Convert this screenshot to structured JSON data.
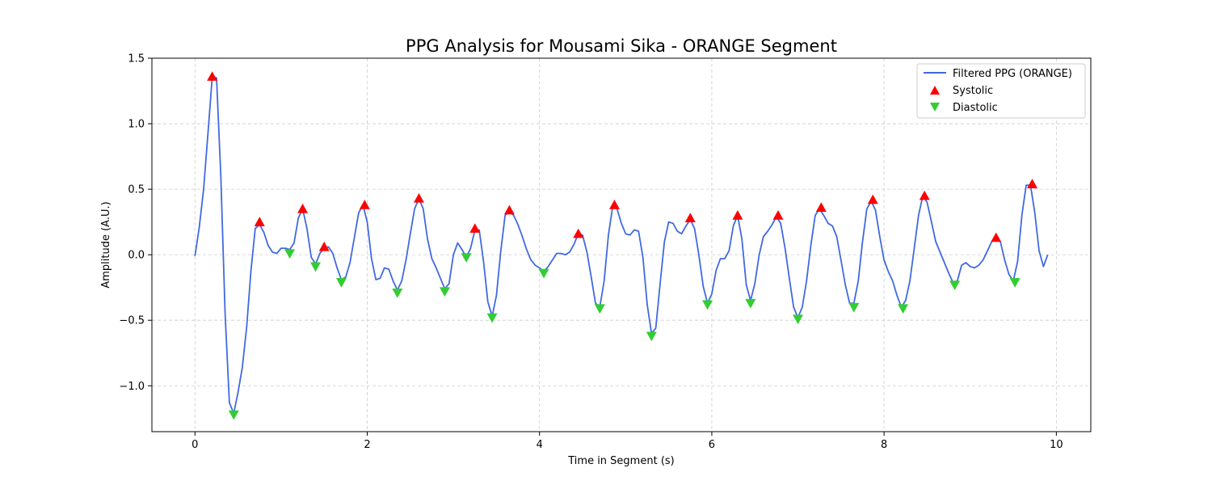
{
  "chart_data": {
    "type": "line",
    "title": "PPG Analysis for Mousami Sika - ORANGE Segment",
    "xlabel": "Time in Segment (s)",
    "ylabel": "Amplitude (A.U.)",
    "xlim": [
      -0.5,
      10.4
    ],
    "ylim": [
      -1.35,
      1.5
    ],
    "xticks": [
      0,
      2,
      4,
      6,
      8,
      10
    ],
    "yticks": [
      -1.0,
      -0.5,
      0.0,
      0.5,
      1.0,
      1.5
    ],
    "xtick_labels": [
      "0",
      "2",
      "4",
      "6",
      "8",
      "10"
    ],
    "ytick_labels": [
      "−1.0",
      "−0.5",
      "0.0",
      "0.5",
      "1.0",
      "1.5"
    ],
    "grid": true,
    "legend_position": "top-right",
    "colors": {
      "line": "#4169e1",
      "systolic": "#ff0000",
      "diastolic": "#32cd32",
      "grid": "#cccccc"
    },
    "series": [
      {
        "name": "Filtered PPG (ORANGE)",
        "kind": "line",
        "x": [
          0.0,
          0.05,
          0.1,
          0.15,
          0.2,
          0.25,
          0.3,
          0.35,
          0.4,
          0.45,
          0.5,
          0.55,
          0.6,
          0.65,
          0.7,
          0.75,
          0.8,
          0.85,
          0.9,
          0.95,
          1.0,
          1.05,
          1.1,
          1.15,
          1.2,
          1.25,
          1.3,
          1.35,
          1.4,
          1.45,
          1.5,
          1.55,
          1.6,
          1.65,
          1.7,
          1.75,
          1.8,
          1.85,
          1.9,
          1.95,
          2.0,
          2.05,
          2.1,
          2.15,
          2.2,
          2.25,
          2.3,
          2.35,
          2.4,
          2.45,
          2.5,
          2.55,
          2.6,
          2.65,
          2.7,
          2.75,
          2.8,
          2.85,
          2.9,
          2.95,
          3.0,
          3.05,
          3.1,
          3.15,
          3.2,
          3.25,
          3.3,
          3.35,
          3.4,
          3.45,
          3.5,
          3.55,
          3.6,
          3.65,
          3.7,
          3.75,
          3.8,
          3.85,
          3.9,
          3.95,
          4.0,
          4.05,
          4.1,
          4.15,
          4.2,
          4.25,
          4.3,
          4.35,
          4.4,
          4.45,
          4.5,
          4.55,
          4.6,
          4.65,
          4.7,
          4.75,
          4.8,
          4.85,
          4.9,
          4.95,
          5.0,
          5.05,
          5.1,
          5.15,
          5.2,
          5.25,
          5.3,
          5.35,
          5.4,
          5.45,
          5.5,
          5.55,
          5.6,
          5.65,
          5.7,
          5.75,
          5.8,
          5.85,
          5.9,
          5.95,
          6.0,
          6.05,
          6.1,
          6.15,
          6.2,
          6.25,
          6.3,
          6.35,
          6.4,
          6.45,
          6.5,
          6.55,
          6.6,
          6.65,
          6.7,
          6.75,
          6.8,
          6.85,
          6.9,
          6.95,
          7.0,
          7.05,
          7.1,
          7.15,
          7.2,
          7.25,
          7.3,
          7.35,
          7.4,
          7.45,
          7.5,
          7.55,
          7.6,
          7.65,
          7.7,
          7.75,
          7.8,
          7.85,
          7.9,
          7.95,
          8.0,
          8.05,
          8.1,
          8.15,
          8.2,
          8.25,
          8.3,
          8.35,
          8.4,
          8.45,
          8.5,
          8.55,
          8.6,
          8.65,
          8.7,
          8.75,
          8.8,
          8.85,
          8.9,
          8.95,
          9.0,
          9.05,
          9.1,
          9.15,
          9.2,
          9.25,
          9.3,
          9.35,
          9.4,
          9.45,
          9.5,
          9.55,
          9.6,
          9.65,
          9.7,
          9.75,
          9.8,
          9.85,
          9.9
        ],
        "y": [
          -0.01,
          0.21,
          0.5,
          0.92,
          1.35,
          1.35,
          0.6,
          -0.45,
          -1.13,
          -1.21,
          -1.05,
          -0.86,
          -0.55,
          -0.12,
          0.2,
          0.23,
          0.17,
          0.07,
          0.02,
          0.01,
          0.05,
          0.05,
          0.04,
          0.09,
          0.28,
          0.35,
          0.2,
          -0.02,
          -0.07,
          0.01,
          0.05,
          0.06,
          0.01,
          -0.1,
          -0.19,
          -0.17,
          -0.06,
          0.13,
          0.32,
          0.38,
          0.25,
          -0.03,
          -0.19,
          -0.18,
          -0.1,
          -0.11,
          -0.2,
          -0.27,
          -0.2,
          -0.04,
          0.16,
          0.35,
          0.43,
          0.35,
          0.12,
          -0.03,
          -0.1,
          -0.18,
          -0.26,
          -0.22,
          0.0,
          0.09,
          0.04,
          -0.02,
          0.05,
          0.19,
          0.19,
          -0.05,
          -0.36,
          -0.47,
          -0.31,
          0.03,
          0.3,
          0.33,
          0.3,
          0.23,
          0.14,
          0.04,
          -0.04,
          -0.08,
          -0.1,
          -0.13,
          -0.09,
          -0.04,
          0.01,
          0.01,
          0.0,
          0.02,
          0.08,
          0.16,
          0.15,
          0.02,
          -0.17,
          -0.37,
          -0.4,
          -0.2,
          0.15,
          0.37,
          0.35,
          0.24,
          0.16,
          0.15,
          0.19,
          0.18,
          -0.02,
          -0.38,
          -0.6,
          -0.56,
          -0.22,
          0.1,
          0.25,
          0.24,
          0.18,
          0.16,
          0.22,
          0.27,
          0.2,
          0.0,
          -0.24,
          -0.37,
          -0.3,
          -0.12,
          -0.03,
          -0.03,
          0.03,
          0.22,
          0.3,
          0.12,
          -0.23,
          -0.35,
          -0.22,
          0.0,
          0.14,
          0.18,
          0.23,
          0.29,
          0.24,
          0.05,
          -0.18,
          -0.4,
          -0.48,
          -0.4,
          -0.2,
          0.07,
          0.3,
          0.35,
          0.3,
          0.24,
          0.22,
          0.14,
          -0.04,
          -0.23,
          -0.37,
          -0.37,
          -0.2,
          0.1,
          0.35,
          0.41,
          0.34,
          0.14,
          -0.04,
          -0.13,
          -0.2,
          -0.31,
          -0.4,
          -0.35,
          -0.2,
          0.05,
          0.3,
          0.45,
          0.4,
          0.25,
          0.1,
          0.02,
          -0.06,
          -0.14,
          -0.21,
          -0.2,
          -0.08,
          -0.06,
          -0.09,
          -0.1,
          -0.08,
          -0.04,
          0.03,
          0.1,
          0.12,
          0.1,
          -0.04,
          -0.15,
          -0.2,
          -0.05,
          0.3,
          0.53,
          0.53,
          0.32,
          0.03,
          -0.09,
          0.0
        ]
      },
      {
        "name": "Systolic",
        "kind": "marker",
        "marker": "triangle-up",
        "x": [
          0.2,
          0.75,
          1.25,
          1.5,
          1.97,
          2.6,
          3.25,
          3.65,
          4.45,
          4.87,
          5.75,
          6.3,
          6.77,
          7.27,
          7.87,
          8.47,
          9.3,
          9.72
        ],
        "y": [
          1.36,
          0.25,
          0.35,
          0.06,
          0.38,
          0.43,
          0.2,
          0.34,
          0.16,
          0.38,
          0.28,
          0.3,
          0.3,
          0.36,
          0.42,
          0.45,
          0.13,
          0.54
        ]
      },
      {
        "name": "Diastolic",
        "kind": "marker",
        "marker": "triangle-down",
        "x": [
          0.45,
          1.1,
          1.4,
          1.7,
          2.35,
          2.9,
          3.15,
          3.45,
          4.05,
          4.7,
          5.3,
          5.95,
          6.45,
          7.0,
          7.65,
          8.22,
          8.82,
          9.52
        ],
        "y": [
          -1.22,
          0.01,
          -0.09,
          -0.21,
          -0.29,
          -0.28,
          -0.02,
          -0.48,
          -0.14,
          -0.41,
          -0.62,
          -0.38,
          -0.37,
          -0.49,
          -0.4,
          -0.41,
          -0.23,
          -0.21
        ]
      }
    ]
  }
}
